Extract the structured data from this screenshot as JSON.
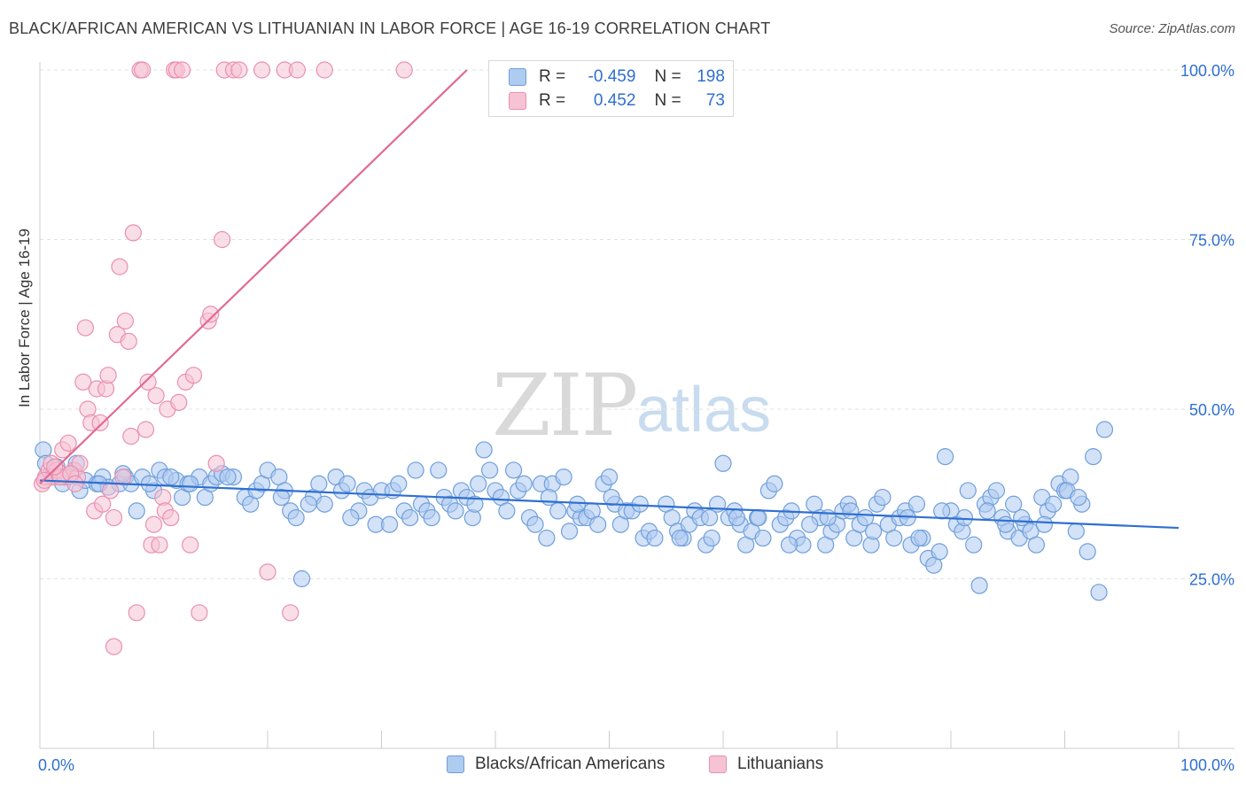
{
  "title": "BLACK/AFRICAN AMERICAN VS LITHUANIAN IN LABOR FORCE | AGE 16-19 CORRELATION CHART",
  "source": "Source: ZipAtlas.com",
  "watermark": {
    "zip": "ZIP",
    "atlas": "atlas"
  },
  "legend": {
    "rows": [
      {
        "r_label": "R =",
        "r_value": "-0.459",
        "n_label": "N =",
        "n_value": "198"
      },
      {
        "r_label": "R =",
        "r_value": "0.452",
        "n_label": "N =",
        "n_value": "73"
      }
    ]
  },
  "colors": {
    "blue": "#6f9fdc",
    "blue_fill": "#aecbf0",
    "blue_line": "#2f6fd1",
    "pink": "#ea8fb0",
    "pink_fill": "#f6c3d4",
    "pink_line": "#e06a93",
    "axis_label": "#2f6fd1",
    "grid": "#dddddd"
  },
  "chart_data": {
    "type": "scatter",
    "title": "BLACK/AFRICAN AMERICAN VS LITHUANIAN IN LABOR FORCE | AGE 16-19 CORRELATION CHART",
    "xlabel": "",
    "ylabel": "In Labor Force | Age 16-19",
    "xlim": [
      0,
      100
    ],
    "ylim": [
      0,
      105
    ],
    "x_tick_labels": [
      "0.0%",
      "100.0%"
    ],
    "y_tick_labels": [
      "25.0%",
      "50.0%",
      "75.0%",
      "100.0%"
    ],
    "y_ticks": [
      25,
      50,
      75,
      100
    ],
    "grid": true,
    "legend_placement": "top-center",
    "series": [
      {
        "name": "Blacks/African Americans",
        "color": "#6f9fdc",
        "trend": {
          "x": [
            0,
            100
          ],
          "y": [
            39.5,
            32.5
          ]
        },
        "points": [
          [
            0.3,
            44
          ],
          [
            0.5,
            42
          ],
          [
            1,
            40
          ],
          [
            1.5,
            41.5
          ],
          [
            2,
            39
          ],
          [
            2.5,
            40
          ],
          [
            3,
            41
          ],
          [
            3.5,
            38
          ],
          [
            4,
            39.5
          ],
          [
            5,
            39
          ],
          [
            5.5,
            40
          ],
          [
            6,
            38.5
          ],
          [
            7,
            39
          ],
          [
            7.5,
            40
          ],
          [
            8,
            39
          ],
          [
            8.5,
            35
          ],
          [
            9,
            40
          ],
          [
            10,
            38
          ],
          [
            10.5,
            41
          ],
          [
            11,
            40
          ],
          [
            12,
            39.5
          ],
          [
            12.5,
            37
          ],
          [
            13,
            39
          ],
          [
            14,
            40
          ],
          [
            14.5,
            37
          ],
          [
            15,
            39
          ],
          [
            15.5,
            40
          ],
          [
            16,
            40.5
          ],
          [
            17,
            40
          ],
          [
            18,
            37
          ],
          [
            18.5,
            36
          ],
          [
            19,
            38
          ],
          [
            19.5,
            39
          ],
          [
            20,
            41
          ],
          [
            21,
            40
          ],
          [
            21.5,
            38
          ],
          [
            22,
            35
          ],
          [
            22.5,
            34
          ],
          [
            23,
            25
          ],
          [
            24,
            37
          ],
          [
            24.5,
            39
          ],
          [
            25,
            36
          ],
          [
            26,
            40
          ],
          [
            26.5,
            38
          ],
          [
            27,
            39
          ],
          [
            28,
            35
          ],
          [
            28.5,
            38
          ],
          [
            29,
            37
          ],
          [
            29.5,
            33
          ],
          [
            30,
            38
          ],
          [
            31,
            38
          ],
          [
            31.5,
            39
          ],
          [
            32,
            35
          ],
          [
            32.5,
            34
          ],
          [
            33,
            41
          ],
          [
            33.5,
            36
          ],
          [
            34,
            35
          ],
          [
            35,
            41
          ],
          [
            35.5,
            37
          ],
          [
            36,
            36
          ],
          [
            36.5,
            35
          ],
          [
            37,
            38
          ],
          [
            37.5,
            37
          ],
          [
            38,
            34
          ],
          [
            38.5,
            39
          ],
          [
            39,
            44
          ],
          [
            39.5,
            41
          ],
          [
            40,
            38
          ],
          [
            40.5,
            37
          ],
          [
            41,
            35
          ],
          [
            42,
            38
          ],
          [
            42.5,
            39
          ],
          [
            43,
            34
          ],
          [
            43.5,
            33
          ],
          [
            44,
            39
          ],
          [
            44.5,
            31
          ],
          [
            45,
            39
          ],
          [
            45.5,
            35
          ],
          [
            46,
            40
          ],
          [
            46.5,
            32
          ],
          [
            47,
            35
          ],
          [
            47.5,
            34
          ],
          [
            48,
            34
          ],
          [
            48.5,
            35
          ],
          [
            49,
            33
          ],
          [
            49.5,
            39
          ],
          [
            50,
            40
          ],
          [
            50.5,
            36
          ],
          [
            51,
            33
          ],
          [
            51.5,
            35
          ],
          [
            52,
            35
          ],
          [
            53,
            31
          ],
          [
            53.5,
            32
          ],
          [
            54,
            31
          ],
          [
            55,
            36
          ],
          [
            55.5,
            34
          ],
          [
            56,
            32
          ],
          [
            56.5,
            31
          ],
          [
            57,
            33
          ],
          [
            57.5,
            35
          ],
          [
            58,
            34
          ],
          [
            58.5,
            30
          ],
          [
            59,
            31
          ],
          [
            59.5,
            36
          ],
          [
            60,
            42
          ],
          [
            60.5,
            34
          ],
          [
            61,
            35
          ],
          [
            61.5,
            33
          ],
          [
            62,
            30
          ],
          [
            62.5,
            32
          ],
          [
            63,
            34
          ],
          [
            63.5,
            31
          ],
          [
            64,
            38
          ],
          [
            64.5,
            39
          ],
          [
            65,
            33
          ],
          [
            65.5,
            34
          ],
          [
            66,
            35
          ],
          [
            66.5,
            31
          ],
          [
            67,
            30
          ],
          [
            68,
            36
          ],
          [
            68.5,
            34
          ],
          [
            69,
            30
          ],
          [
            69.5,
            32
          ],
          [
            70,
            33
          ],
          [
            70.5,
            35
          ],
          [
            71,
            36
          ],
          [
            71.5,
            31
          ],
          [
            72,
            33
          ],
          [
            72.5,
            34
          ],
          [
            73,
            30
          ],
          [
            73.5,
            36
          ],
          [
            74,
            37
          ],
          [
            74.5,
            33
          ],
          [
            75,
            31
          ],
          [
            75.5,
            34
          ],
          [
            76,
            35
          ],
          [
            76.5,
            30
          ],
          [
            77,
            36
          ],
          [
            77.5,
            31
          ],
          [
            78,
            28
          ],
          [
            78.5,
            27
          ],
          [
            79,
            29
          ],
          [
            79.5,
            43
          ],
          [
            80,
            35
          ],
          [
            80.5,
            33
          ],
          [
            81,
            32
          ],
          [
            81.5,
            38
          ],
          [
            82,
            30
          ],
          [
            82.5,
            24
          ],
          [
            83,
            36
          ],
          [
            83.5,
            37
          ],
          [
            84,
            38
          ],
          [
            84.5,
            34
          ],
          [
            85,
            32
          ],
          [
            85.5,
            36
          ],
          [
            86,
            31
          ],
          [
            86.5,
            33
          ],
          [
            87,
            32
          ],
          [
            87.5,
            30
          ],
          [
            88,
            37
          ],
          [
            88.5,
            35
          ],
          [
            89,
            36
          ],
          [
            89.5,
            39
          ],
          [
            90,
            38
          ],
          [
            90.5,
            40
          ],
          [
            91,
            32
          ],
          [
            91.5,
            36
          ],
          [
            92,
            29
          ],
          [
            92.5,
            43
          ],
          [
            93,
            23
          ],
          [
            93.5,
            47
          ],
          [
            3.2,
            42
          ],
          [
            5.2,
            39
          ],
          [
            7.3,
            40.5
          ],
          [
            9.6,
            39
          ],
          [
            11.5,
            40
          ],
          [
            13.2,
            39
          ],
          [
            16.5,
            40
          ],
          [
            21.2,
            37
          ],
          [
            23.6,
            36
          ],
          [
            27.3,
            34
          ],
          [
            30.7,
            33
          ],
          [
            34.4,
            34
          ],
          [
            38.2,
            36
          ],
          [
            41.6,
            41
          ],
          [
            44.7,
            37
          ],
          [
            47.2,
            36
          ],
          [
            50.2,
            37
          ],
          [
            52.7,
            36
          ],
          [
            56.2,
            31
          ],
          [
            58.8,
            34
          ],
          [
            61.2,
            34
          ],
          [
            63.1,
            34
          ],
          [
            65.8,
            30
          ],
          [
            67.6,
            33
          ],
          [
            69.2,
            34
          ],
          [
            71.2,
            35
          ],
          [
            73.2,
            32
          ],
          [
            76.2,
            34
          ],
          [
            77.2,
            31
          ],
          [
            79.2,
            35
          ],
          [
            81.2,
            34
          ],
          [
            83.2,
            35
          ],
          [
            84.8,
            33
          ],
          [
            86.2,
            34
          ],
          [
            88.2,
            33
          ],
          [
            90.2,
            38
          ],
          [
            91.2,
            37
          ]
        ]
      },
      {
        "name": "Lithuanians",
        "color": "#ea8fb0",
        "trend": {
          "x": [
            0,
            37.5
          ],
          "y": [
            39,
            100
          ]
        },
        "points": [
          [
            0.2,
            39
          ],
          [
            0.5,
            40
          ],
          [
            0.8,
            41
          ],
          [
            1,
            42
          ],
          [
            1.2,
            40
          ],
          [
            1.5,
            41
          ],
          [
            2,
            44
          ],
          [
            2.2,
            40
          ],
          [
            2.5,
            45
          ],
          [
            3,
            41
          ],
          [
            3.3,
            40
          ],
          [
            3.5,
            42
          ],
          [
            3.8,
            54
          ],
          [
            4,
            62
          ],
          [
            4.2,
            50
          ],
          [
            4.5,
            48
          ],
          [
            4.8,
            35
          ],
          [
            5,
            53
          ],
          [
            5.3,
            48
          ],
          [
            5.5,
            36
          ],
          [
            5.8,
            53
          ],
          [
            6,
            55
          ],
          [
            6.2,
            38
          ],
          [
            6.5,
            34
          ],
          [
            6.8,
            61
          ],
          [
            7,
            71
          ],
          [
            7.3,
            40
          ],
          [
            7.5,
            63
          ],
          [
            7.8,
            60
          ],
          [
            8,
            46
          ],
          [
            8.2,
            76
          ],
          [
            8.5,
            20
          ],
          [
            8.8,
            100
          ],
          [
            9,
            100
          ],
          [
            9.3,
            47
          ],
          [
            9.5,
            54
          ],
          [
            9.8,
            30
          ],
          [
            10,
            33
          ],
          [
            10.2,
            52
          ],
          [
            10.5,
            30
          ],
          [
            10.8,
            37
          ],
          [
            11,
            35
          ],
          [
            11.2,
            50
          ],
          [
            11.5,
            34
          ],
          [
            11.8,
            100
          ],
          [
            12,
            100
          ],
          [
            12.2,
            51
          ],
          [
            12.5,
            100
          ],
          [
            12.8,
            54
          ],
          [
            13.2,
            30
          ],
          [
            13.5,
            55
          ],
          [
            14,
            20
          ],
          [
            14.8,
            63
          ],
          [
            15,
            64
          ],
          [
            15.5,
            42
          ],
          [
            16,
            75
          ],
          [
            16.2,
            100
          ],
          [
            17,
            100
          ],
          [
            17.5,
            100
          ],
          [
            19.5,
            100
          ],
          [
            20,
            26
          ],
          [
            21.5,
            100
          ],
          [
            22,
            20
          ],
          [
            22.6,
            100
          ],
          [
            25,
            100
          ],
          [
            32,
            100
          ],
          [
            6.5,
            15
          ],
          [
            1.8,
            40
          ],
          [
            2.7,
            40.5
          ],
          [
            0.4,
            39.5
          ],
          [
            3.1,
            39
          ],
          [
            1.3,
            41.5
          ]
        ]
      }
    ]
  },
  "bottom_legend": {
    "blue_label": "Blacks/African Americans",
    "pink_label": "Lithuanians"
  }
}
